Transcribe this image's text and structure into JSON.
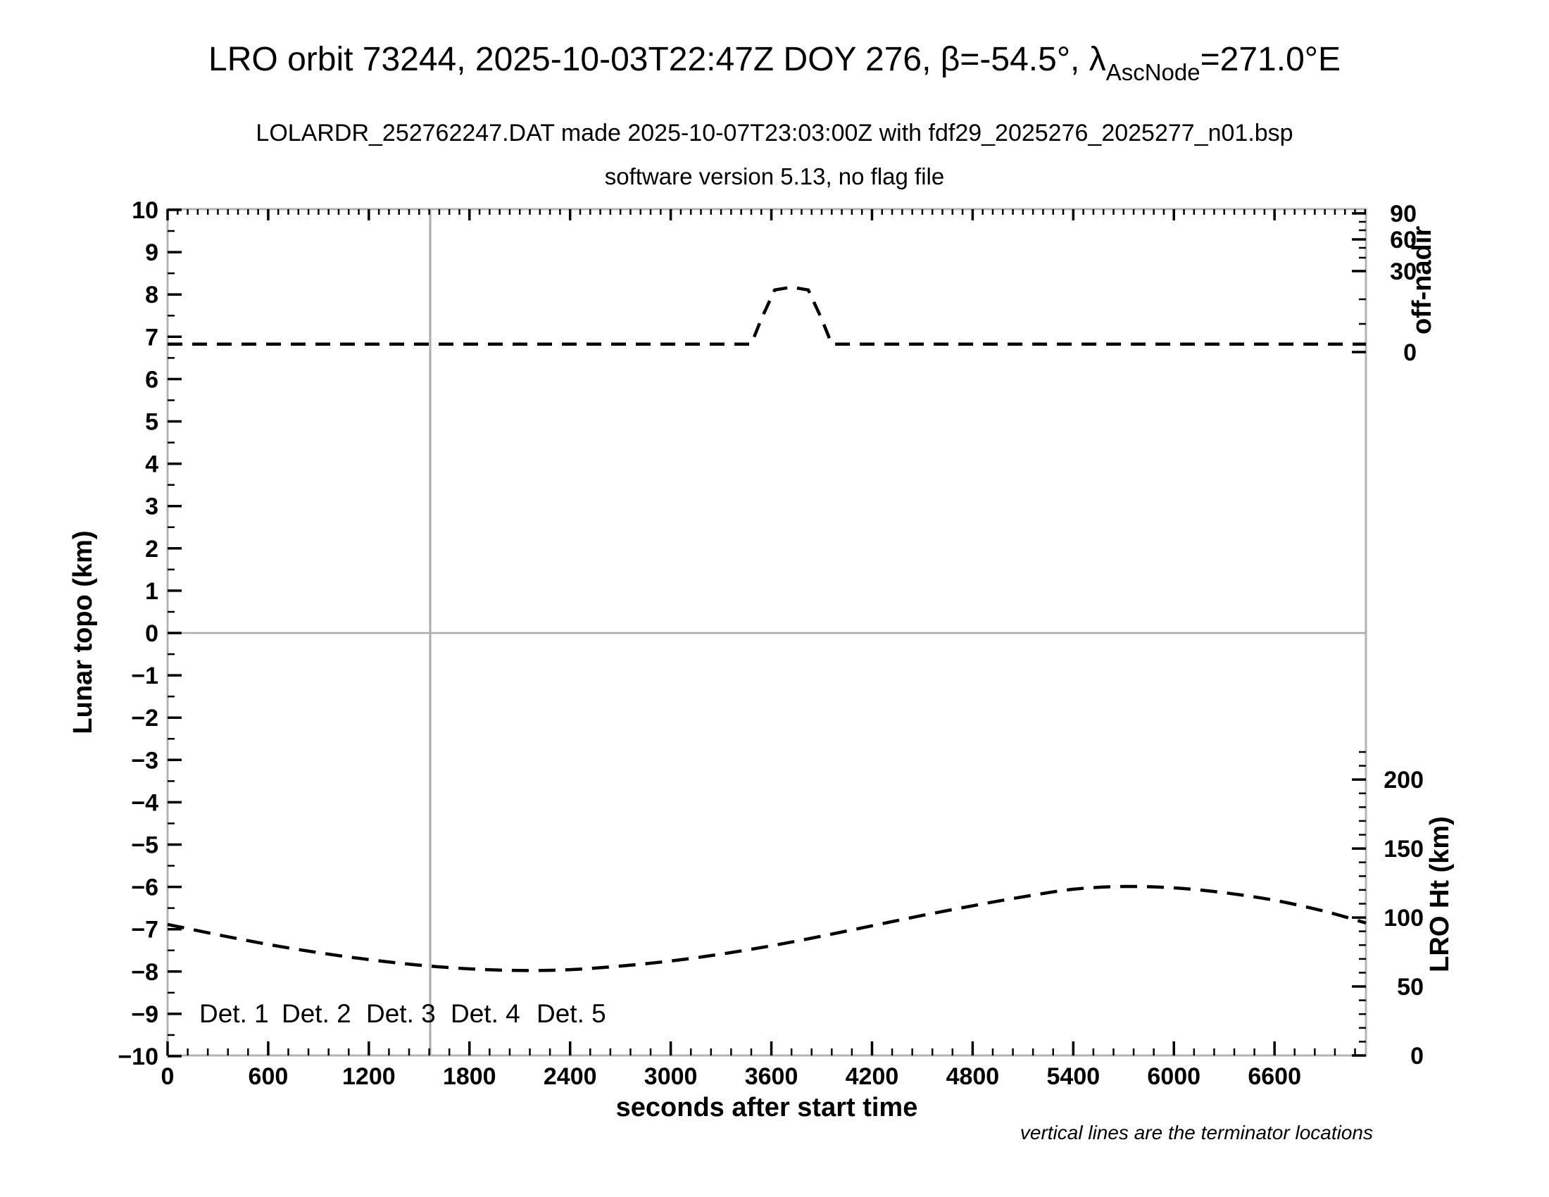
{
  "title": {
    "prefix": "LRO orbit 73244, 2025-10-03T22:47Z DOY 276, β=-54.5°, λ",
    "subscript": "AscNode",
    "suffix": "=271.0°E"
  },
  "subtitle1": "LOLARDR_252762247.DAT made 2025-10-07T23:03:00Z with fdf29_2025276_2025277_n01.bsp",
  "subtitle2": "software version 5.13, no flag file",
  "notes": {
    "footnote": "vertical lines are the terminator locations"
  },
  "chart_data": {
    "type": "line",
    "title": "LRO orbit 73244, 2025-10-03T22:47Z DOY 276, β=-54.5°, λAscNode=271.0°E",
    "x_axis": {
      "label": "seconds after start time",
      "range": [
        0,
        7145
      ],
      "major_tick_interval": 600,
      "major_ticks": [
        0,
        600,
        1200,
        1800,
        2400,
        3000,
        3600,
        4200,
        4800,
        5400,
        6000,
        6600
      ]
    },
    "y_left_axis": {
      "label": "Lunar topo (km)",
      "range": [
        -10,
        10
      ],
      "major_ticks": [
        -10,
        -9,
        -8,
        -7,
        -6,
        -5,
        -4,
        -3,
        -2,
        -1,
        0,
        1,
        2,
        3,
        4,
        5,
        6,
        7,
        8,
        9,
        10
      ]
    },
    "y_right_top_axis": {
      "label": "off-nadir",
      "unit": "degrees",
      "range": [
        0,
        90
      ],
      "major_ticks": [
        0,
        30,
        60,
        90
      ],
      "scale": "nonlinear"
    },
    "y_right_bottom_axis": {
      "label": "LRO Ht (km)",
      "range": [
        0,
        200
      ],
      "major_ticks": [
        0,
        50,
        100,
        150,
        200
      ]
    },
    "series": [
      {
        "name": "off-nadir angle",
        "axis": "off-nadir",
        "line_style": "dashed",
        "color": "#000000",
        "points_t_deg": [
          [
            0,
            2.8
          ],
          [
            3480,
            2.8
          ],
          [
            3540,
            12
          ],
          [
            3620,
            23.3
          ],
          [
            3720,
            24.3
          ],
          [
            3820,
            23.3
          ],
          [
            3900,
            12
          ],
          [
            3960,
            2.8
          ],
          [
            7145,
            2.8
          ]
        ]
      },
      {
        "name": "LRO height",
        "axis": "lro-ht",
        "line_style": "dashed",
        "color": "#000000",
        "points_t_km": [
          [
            0,
            95
          ],
          [
            300,
            87.5
          ],
          [
            600,
            80.5
          ],
          [
            900,
            74.5
          ],
          [
            1200,
            69.5
          ],
          [
            1500,
            65.5
          ],
          [
            1800,
            62.8
          ],
          [
            2100,
            61.6
          ],
          [
            2400,
            62.2
          ],
          [
            2700,
            64.8
          ],
          [
            3000,
            68.5
          ],
          [
            3300,
            73.5
          ],
          [
            3600,
            79.5
          ],
          [
            3900,
            86.5
          ],
          [
            4200,
            94
          ],
          [
            4500,
            101.5
          ],
          [
            4800,
            108.5
          ],
          [
            5100,
            115
          ],
          [
            5400,
            120.5
          ],
          [
            5700,
            122.5
          ],
          [
            6000,
            121.5
          ],
          [
            6300,
            118
          ],
          [
            6600,
            112.5
          ],
          [
            6900,
            104.5
          ],
          [
            7145,
            96
          ]
        ]
      }
    ],
    "reference_lines": {
      "topo_zero_horizontal_km": 0,
      "terminator_vertical_s": [
        1566
      ]
    },
    "legend": [
      {
        "label": "Det. 1",
        "color": "#000000"
      },
      {
        "label": "Det. 2",
        "color": "#0000ff"
      },
      {
        "label": "Det. 3",
        "color": "#00dd00"
      },
      {
        "label": "Det. 4",
        "color": "#ffa500"
      },
      {
        "label": "Det. 5",
        "color": "#ff0000"
      }
    ],
    "grid": "off",
    "legend_position": "inside-bottom-left"
  }
}
